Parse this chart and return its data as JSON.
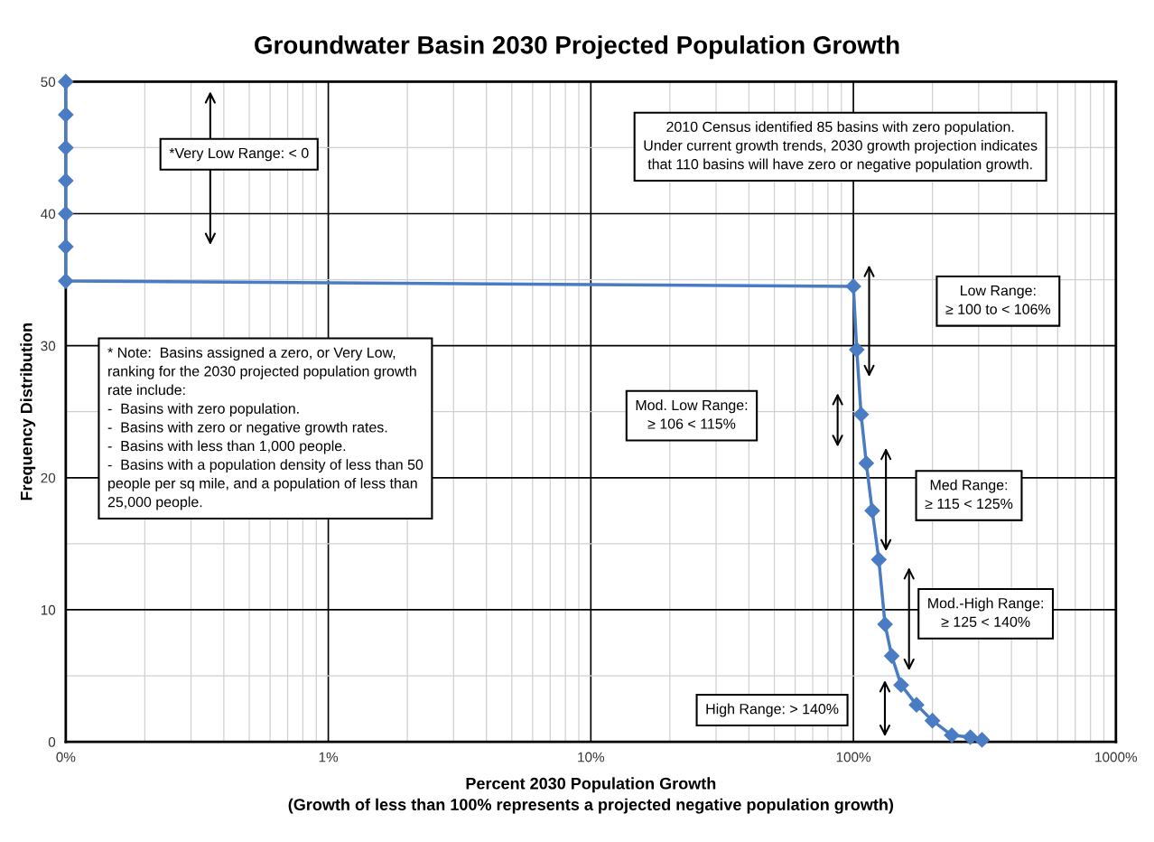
{
  "chart_data": {
    "type": "line",
    "title": "Groundwater Basin 2030 Projected Population Growth",
    "xlabel": "Percent 2030 Population Growth\n(Growth of less than 100% represents a projected negative population growth)",
    "ylabel": "Frequency Distribution",
    "log": "x",
    "grid": true,
    "marker": "diamond",
    "line_style": "solid",
    "legend": false,
    "xlim": [
      0.1,
      1000
    ],
    "xticks": [
      {
        "value": 0.1,
        "label": "0%"
      },
      {
        "value": 1,
        "label": "1%"
      },
      {
        "value": 10,
        "label": "10%"
      },
      {
        "value": 100,
        "label": "100%"
      },
      {
        "value": 1000,
        "label": "1000%"
      }
    ],
    "ylim": [
      0,
      50
    ],
    "yticks": [
      0,
      10,
      20,
      30,
      40,
      50
    ],
    "series": [
      {
        "color": "#4a7cc3",
        "x": [
          0.1,
          0.1,
          0.1,
          0.1,
          0.1,
          0.1,
          0.1,
          100,
          103,
          107,
          112,
          118,
          125,
          132,
          140,
          152,
          174,
          200,
          237,
          279,
          309
        ],
        "values": [
          50,
          47.5,
          45,
          42.5,
          40,
          37.5,
          34.9,
          34.5,
          29.7,
          24.8,
          21.1,
          17.5,
          13.8,
          8.9,
          6.5,
          4.3,
          2.8,
          1.6,
          0.5,
          0.35,
          0.15
        ]
      }
    ],
    "annotations": [
      "*Very Low Range: < 0",
      "2010 Census identified 85 basins with zero population.\nUnder current growth trends, 2030 growth projection indicates\nthat 110 basins will have zero or negative population growth.",
      "Low Range:\n≥ 100 to < 106%",
      "Mod. Low Range:\n≥ 106 < 115%",
      "* Note:  Basins assigned a zero, or Very Low,\nranking for the 2030 projected population growth\nrate include:\n-  Basins with zero population.\n-  Basins with zero or negative growth rates.\n-  Basins with less than 1,000 people.\n-  Basins with a population density of less than 50\npeople per sq mile, and a population of less than\n25,000 people.",
      "Med Range:\n≥ 115 < 125%",
      "Mod.-High Range:\n≥ 125 < 140%",
      "High Range: > 140%"
    ]
  }
}
